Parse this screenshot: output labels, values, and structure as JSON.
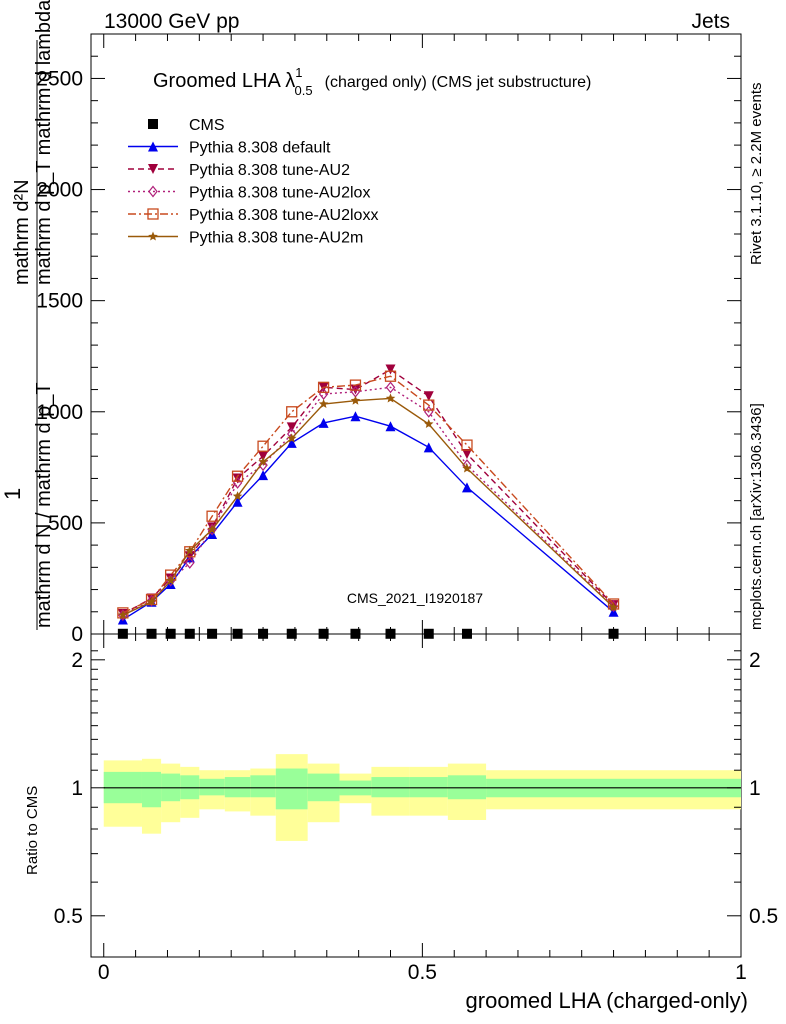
{
  "header": {
    "energy_label": "13000 GeV pp",
    "process_label": "Jets"
  },
  "side_labels": {
    "rivet": "Rivet 3.1.10, ≥ 2.2M events",
    "mcplots": "mcplots.cern.ch [arXiv:1306.3436]"
  },
  "chart_data": [
    {
      "type": "line",
      "panel": "main",
      "title_main": "Groomed LHA λ",
      "title_sup": "1",
      "title_sub": "0.5",
      "title_rest": "(charged only) (CMS jet substructure)",
      "ylabel_top_one": "1",
      "ylabel_top": "mathrm d²N",
      "ylabel_top2": "mathrm d p_T mathrm d lambda",
      "ylabel_denom_left": "mathrm d N / mathrm d p_T",
      "ylabel_denom_right": "mathrm d p_T mathrm d lambda",
      "ylim": [
        0,
        2700
      ],
      "xlim": [
        -0.02,
        1.0
      ],
      "yticks": [
        0,
        500,
        1000,
        1500,
        2000,
        2500
      ],
      "ytick_labels": [
        "0",
        "500",
        "1000",
        "1500",
        "2000",
        "2500"
      ],
      "watermark": "CMS_2021_I1920187",
      "legend_position": "top-left",
      "x": [
        0.03,
        0.075,
        0.105,
        0.135,
        0.17,
        0.21,
        0.25,
        0.295,
        0.345,
        0.395,
        0.45,
        0.51,
        0.57,
        0.8
      ],
      "series": [
        {
          "name": "CMS",
          "color": "#000000",
          "marker": "square",
          "style": "none",
          "values": [
            1,
            1,
            1,
            1,
            1,
            1,
            1,
            1,
            1,
            1,
            1,
            1,
            1,
            1
          ]
        },
        {
          "name": "Pythia 8.308 default",
          "color": "#0000ee",
          "marker": "triangle-up",
          "style": "solid",
          "values": [
            65,
            145,
            225,
            345,
            450,
            595,
            715,
            860,
            950,
            980,
            935,
            840,
            660,
            100
          ]
        },
        {
          "name": "Pythia 8.308 tune-AU2",
          "color": "#a0003c",
          "marker": "triangle-down",
          "style": "dashed",
          "values": [
            90,
            160,
            250,
            350,
            480,
            700,
            800,
            930,
            1110,
            1100,
            1190,
            1070,
            810,
            130
          ]
        },
        {
          "name": "Pythia 8.308 tune-AU2lox",
          "color": "#b0207a",
          "marker": "diamond",
          "style": "dotted",
          "values": [
            85,
            150,
            240,
            320,
            470,
            680,
            760,
            900,
            1080,
            1090,
            1110,
            1000,
            760,
            125
          ]
        },
        {
          "name": "Pythia 8.308 tune-AU2loxx",
          "color": "#c84a1e",
          "marker": "open-square",
          "style": "dashdot",
          "values": [
            95,
            155,
            265,
            370,
            530,
            710,
            845,
            1000,
            1110,
            1120,
            1160,
            1030,
            850,
            135
          ]
        },
        {
          "name": "Pythia 8.308 tune-AU2m",
          "color": "#9a5a0a",
          "marker": "star",
          "style": "solid",
          "values": [
            85,
            145,
            240,
            375,
            470,
            620,
            775,
            880,
            1035,
            1050,
            1060,
            945,
            745,
            120
          ]
        }
      ]
    },
    {
      "type": "area",
      "panel": "ratio",
      "ylabel": "Ratio to CMS",
      "ylim": [
        0.4,
        2.3
      ],
      "yticks": [
        0.5,
        1,
        2
      ],
      "ytick_labels": [
        "0.5",
        "1",
        "2"
      ],
      "xticks": [
        0,
        0.5,
        1
      ],
      "xtick_labels": [
        "0",
        "0.5",
        "1"
      ],
      "xlabel": "groomed LHA (charged-only)",
      "reference": 1,
      "band_bins": [
        {
          "lo": 0.0,
          "hi": 0.06,
          "inner": [
            0.92,
            1.09
          ],
          "outer": [
            0.81,
            1.16
          ]
        },
        {
          "lo": 0.06,
          "hi": 0.09,
          "inner": [
            0.9,
            1.09
          ],
          "outer": [
            0.78,
            1.17
          ]
        },
        {
          "lo": 0.09,
          "hi": 0.12,
          "inner": [
            0.93,
            1.08
          ],
          "outer": [
            0.83,
            1.14
          ]
        },
        {
          "lo": 0.12,
          "hi": 0.15,
          "inner": [
            0.94,
            1.07
          ],
          "outer": [
            0.85,
            1.12
          ]
        },
        {
          "lo": 0.15,
          "hi": 0.19,
          "inner": [
            0.96,
            1.05
          ],
          "outer": [
            0.89,
            1.1
          ]
        },
        {
          "lo": 0.19,
          "hi": 0.23,
          "inner": [
            0.95,
            1.06
          ],
          "outer": [
            0.88,
            1.1
          ]
        },
        {
          "lo": 0.23,
          "hi": 0.27,
          "inner": [
            0.95,
            1.07
          ],
          "outer": [
            0.86,
            1.11
          ]
        },
        {
          "lo": 0.27,
          "hi": 0.32,
          "inner": [
            0.89,
            1.11
          ],
          "outer": [
            0.75,
            1.2
          ]
        },
        {
          "lo": 0.32,
          "hi": 0.37,
          "inner": [
            0.93,
            1.08
          ],
          "outer": [
            0.83,
            1.14
          ]
        },
        {
          "lo": 0.37,
          "hi": 0.42,
          "inner": [
            0.96,
            1.04
          ],
          "outer": [
            0.92,
            1.08
          ]
        },
        {
          "lo": 0.42,
          "hi": 0.48,
          "inner": [
            0.95,
            1.06
          ],
          "outer": [
            0.86,
            1.12
          ]
        },
        {
          "lo": 0.48,
          "hi": 0.54,
          "inner": [
            0.95,
            1.06
          ],
          "outer": [
            0.86,
            1.12
          ]
        },
        {
          "lo": 0.54,
          "hi": 0.6,
          "inner": [
            0.94,
            1.07
          ],
          "outer": [
            0.84,
            1.14
          ]
        },
        {
          "lo": 0.6,
          "hi": 1.0,
          "inner": [
            0.95,
            1.05
          ],
          "outer": [
            0.89,
            1.1
          ]
        }
      ],
      "inner_color": "#99ff99",
      "outer_color": "#ffff99"
    }
  ]
}
